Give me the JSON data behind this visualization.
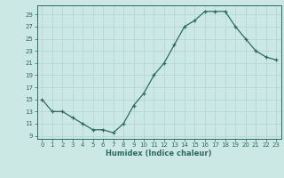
{
  "x": [
    0,
    1,
    2,
    3,
    4,
    5,
    6,
    7,
    8,
    9,
    10,
    11,
    12,
    13,
    14,
    15,
    16,
    17,
    18,
    19,
    20,
    21,
    22,
    23
  ],
  "y": [
    15,
    13,
    13,
    12,
    11,
    10,
    10,
    9.5,
    11,
    14,
    16,
    19,
    21,
    24,
    27,
    28,
    29.5,
    29.5,
    29.5,
    27,
    25,
    23,
    22,
    21.5
  ],
  "xlabel": "Humidex (Indice chaleur)",
  "line_color": "#2e6b5e",
  "marker": "+",
  "bg_color": "#cce8e4",
  "grid_color": "#b0d4d0",
  "tick_color": "#2e6b5e",
  "ylim": [
    8.5,
    30.5
  ],
  "xlim": [
    -0.5,
    23.5
  ],
  "yticks": [
    9,
    11,
    13,
    15,
    17,
    19,
    21,
    23,
    25,
    27,
    29
  ],
  "xticks": [
    0,
    1,
    2,
    3,
    4,
    5,
    6,
    7,
    8,
    9,
    10,
    11,
    12,
    13,
    14,
    15,
    16,
    17,
    18,
    19,
    20,
    21,
    22,
    23
  ]
}
